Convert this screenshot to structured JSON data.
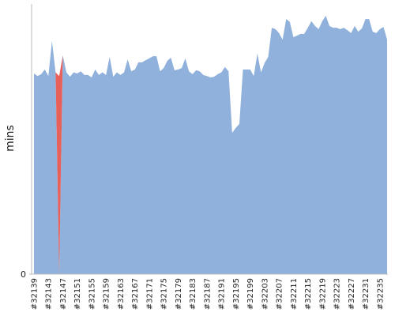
{
  "chart_data": {
    "type": "area",
    "y_label": "mins",
    "categories": [
      "#32139",
      null,
      null,
      null,
      "#32143",
      null,
      null,
      null,
      "#32147",
      null,
      null,
      null,
      "#32151",
      null,
      null,
      null,
      "#32155",
      null,
      null,
      null,
      "#32159",
      null,
      null,
      null,
      "#32163",
      null,
      null,
      null,
      "#32167",
      null,
      null,
      null,
      "#32171",
      null,
      null,
      null,
      "#32175",
      null,
      null,
      null,
      "#32179",
      null,
      null,
      null,
      "#32183",
      null,
      null,
      null,
      "#32187",
      null,
      null,
      null,
      "#32191",
      null,
      null,
      null,
      "#32195",
      null,
      null,
      null,
      "#32199",
      null,
      null,
      null,
      "#32203",
      null,
      null,
      null,
      "#32207",
      null,
      null,
      null,
      "#32211",
      null,
      null,
      null,
      "#32215",
      null,
      null,
      null,
      "#32219",
      null,
      null,
      null,
      "#32223",
      null,
      null,
      null,
      "#32227",
      null,
      null,
      null,
      "#32231",
      null,
      null,
      null,
      "#32235",
      null,
      null
    ],
    "series": [
      {
        "color": "#8fb1dc",
        "values": [
          55.7,
          55,
          55.5,
          56.8,
          55,
          64.7,
          56,
          0,
          60.7,
          56,
          54.8,
          56,
          55.7,
          56.3,
          55.3,
          55.3,
          54.6,
          56.8,
          55.3,
          56,
          55.3,
          60.3,
          54.8,
          56,
          55.3,
          56,
          59.6,
          56.3,
          56.8,
          58.8,
          58.8,
          59.4,
          59.9,
          60.5,
          60.5,
          56.3,
          57.2,
          59.2,
          60.1,
          56.6,
          56.8,
          57.2,
          59.9,
          56.3,
          55.5,
          56.6,
          56.3,
          55.3,
          55,
          54.6,
          54.8,
          55.5,
          56,
          57.5,
          56.3,
          39.2,
          40.6,
          41.7,
          56.8,
          56.8,
          56.8,
          55,
          61.2,
          56,
          58.6,
          60.3,
          68.4,
          68,
          66.9,
          65.1,
          70.8,
          70,
          65.8,
          66.2,
          66.7,
          66.7,
          68.4,
          70.2,
          68.9,
          68,
          70.2,
          71.7,
          68.9,
          68.4,
          68.4,
          68,
          68.4,
          67.7,
          66.9,
          68.9,
          67.3,
          68.2,
          70.8,
          70.8,
          67.3,
          66.9,
          68,
          68.6,
          65.1
        ]
      },
      {
        "color": "#e8605a",
        "values": [
          0,
          0,
          0,
          0,
          0,
          0,
          0,
          55,
          0,
          0,
          0,
          0,
          0,
          0,
          0,
          0,
          0,
          0,
          0,
          0,
          0,
          0,
          0,
          0,
          0,
          0,
          0,
          0,
          0,
          0,
          0,
          0,
          0,
          0,
          0,
          0,
          0,
          0,
          0,
          0,
          0,
          0,
          0,
          0,
          0,
          0,
          0,
          0,
          0,
          0,
          0,
          0,
          0,
          0,
          0,
          0,
          0,
          0,
          0,
          0,
          0,
          0,
          0,
          0,
          0,
          0,
          0,
          0,
          0,
          0,
          0,
          0,
          0,
          0,
          0,
          0,
          0,
          0,
          0,
          0,
          0,
          0,
          0,
          0,
          0,
          0,
          0,
          0,
          0,
          0,
          0,
          0,
          0,
          0,
          0,
          0,
          0,
          0,
          0
        ]
      }
    ],
    "ylim": [
      0,
      75
    ],
    "yticks": [
      0
    ]
  }
}
